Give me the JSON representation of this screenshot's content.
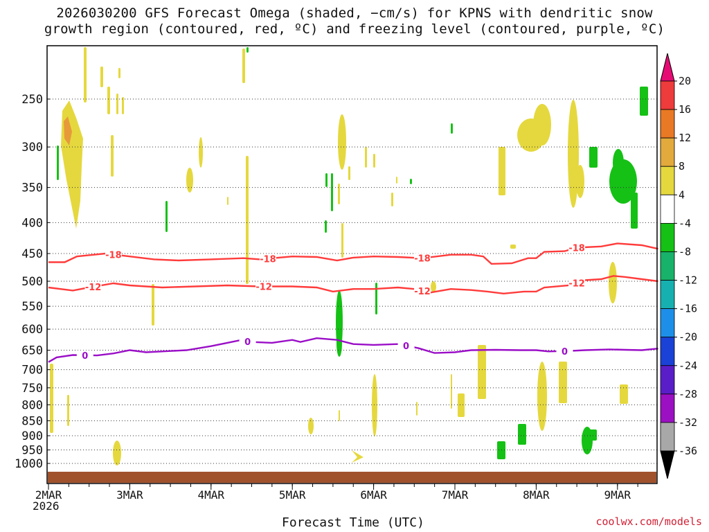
{
  "chart_data": {
    "type": "heatmap",
    "title_line1": "2026030200 GFS Forecast Omega (shaded, −cm/s) for KPNS with dendritic snow",
    "title_line2": "growth region (contoured, red, ºC) and freezing level (contoured, purple, ºC)",
    "xlabel": "Forecast Time (UTC)",
    "ylabel": "",
    "credit": "coolwx.com/models",
    "x_start_year": "2026",
    "x_ticks": [
      "2MAR",
      "3MAR",
      "4MAR",
      "5MAR",
      "6MAR",
      "7MAR",
      "8MAR",
      "9MAR"
    ],
    "xlim": [
      0,
      7.5
    ],
    "y_ticks": [
      250,
      300,
      350,
      400,
      450,
      500,
      550,
      600,
      650,
      700,
      750,
      800,
      850,
      900,
      950,
      1000
    ],
    "ylim": [
      1025,
      200
    ],
    "y_unit": "hPa",
    "colorbar": {
      "labels": [
        20,
        16,
        12,
        8,
        4,
        -4,
        -8,
        -12,
        -16,
        -20,
        -24,
        -28,
        -32,
        -36
      ],
      "colors": [
        "#e60b74",
        "#ee3b3b",
        "#e97924",
        "#e2a93c",
        "#e5d83e",
        "#ffffff",
        "#15c115",
        "#18b26a",
        "#17b0b0",
        "#1e8fe8",
        "#1a42d6",
        "#5a1ec8",
        "#9b10c2",
        "#a8a8a8",
        "#000000"
      ]
    },
    "series": [
      {
        "name": "-18",
        "color": "#ff3b3b",
        "label": "-18",
        "label_days": [
          0.8,
          2.7,
          4.6,
          6.5
        ],
        "points": [
          [
            0,
            465
          ],
          [
            0.2,
            465
          ],
          [
            0.35,
            455
          ],
          [
            0.7,
            450
          ],
          [
            1.0,
            455
          ],
          [
            1.3,
            460
          ],
          [
            1.6,
            462
          ],
          [
            2.0,
            460
          ],
          [
            2.4,
            458
          ],
          [
            2.6,
            460
          ],
          [
            3.0,
            455
          ],
          [
            3.3,
            456
          ],
          [
            3.55,
            462
          ],
          [
            3.75,
            457
          ],
          [
            4.0,
            455
          ],
          [
            4.3,
            456
          ],
          [
            4.6,
            458
          ],
          [
            4.95,
            452
          ],
          [
            5.2,
            452
          ],
          [
            5.35,
            455
          ],
          [
            5.45,
            468
          ],
          [
            5.7,
            467
          ],
          [
            5.9,
            458
          ],
          [
            6.0,
            458
          ],
          [
            6.1,
            447
          ],
          [
            6.35,
            446
          ],
          [
            6.5,
            440
          ],
          [
            6.8,
            438
          ],
          [
            7.0,
            433
          ],
          [
            7.3,
            436
          ],
          [
            7.5,
            442
          ]
        ]
      },
      {
        "name": "-12",
        "color": "#ff3b3b",
        "label": "-12",
        "label_days": [
          0.55,
          2.65,
          4.6,
          6.5
        ],
        "points": [
          [
            0,
            512
          ],
          [
            0.3,
            518
          ],
          [
            0.5,
            512
          ],
          [
            0.8,
            504
          ],
          [
            1.0,
            508
          ],
          [
            1.4,
            512
          ],
          [
            1.8,
            510
          ],
          [
            2.2,
            508
          ],
          [
            2.6,
            510
          ],
          [
            3.0,
            510
          ],
          [
            3.3,
            512
          ],
          [
            3.5,
            520
          ],
          [
            3.75,
            515
          ],
          [
            4.0,
            515
          ],
          [
            4.3,
            512
          ],
          [
            4.5,
            515
          ],
          [
            4.7,
            522
          ],
          [
            4.95,
            515
          ],
          [
            5.2,
            517
          ],
          [
            5.4,
            520
          ],
          [
            5.6,
            524
          ],
          [
            5.85,
            520
          ],
          [
            6.0,
            520
          ],
          [
            6.1,
            512
          ],
          [
            6.4,
            508
          ],
          [
            6.6,
            498
          ],
          [
            6.8,
            496
          ],
          [
            6.95,
            490
          ],
          [
            7.1,
            492
          ],
          [
            7.3,
            496
          ],
          [
            7.5,
            500
          ]
        ]
      },
      {
        "name": "0",
        "color": "#9a0ec7",
        "label": "0",
        "label_days": [
          0.45,
          2.45,
          4.4,
          6.35
        ],
        "points": [
          [
            0,
            680
          ],
          [
            0.1,
            668
          ],
          [
            0.3,
            662
          ],
          [
            0.6,
            663
          ],
          [
            0.8,
            658
          ],
          [
            1.0,
            650
          ],
          [
            1.2,
            655
          ],
          [
            1.5,
            652
          ],
          [
            1.7,
            650
          ],
          [
            2.0,
            640
          ],
          [
            2.2,
            632
          ],
          [
            2.35,
            626
          ],
          [
            2.5,
            630
          ],
          [
            2.75,
            632
          ],
          [
            3.0,
            625
          ],
          [
            3.1,
            630
          ],
          [
            3.3,
            621
          ],
          [
            3.55,
            625
          ],
          [
            3.75,
            635
          ],
          [
            4.0,
            637
          ],
          [
            4.3,
            635
          ],
          [
            4.55,
            645
          ],
          [
            4.75,
            657
          ],
          [
            5.0,
            655
          ],
          [
            5.2,
            650
          ],
          [
            5.5,
            649
          ],
          [
            5.8,
            650
          ],
          [
            6.0,
            650
          ],
          [
            6.15,
            653
          ],
          [
            6.4,
            652
          ],
          [
            6.6,
            650
          ],
          [
            6.9,
            648
          ],
          [
            7.1,
            649
          ],
          [
            7.3,
            650
          ],
          [
            7.5,
            646
          ]
        ]
      }
    ]
  }
}
